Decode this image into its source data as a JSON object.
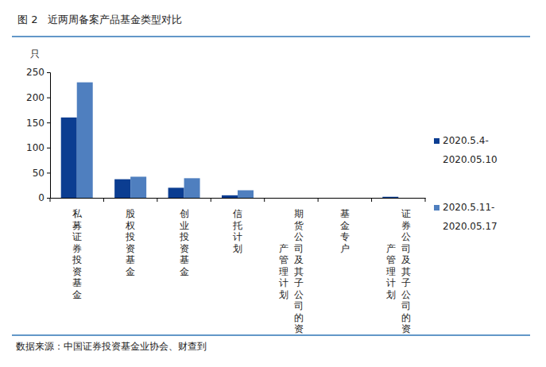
{
  "chart_data": {
    "type": "bar",
    "title": "图 2　近两周备案产品基金类型对比",
    "y_label": "只",
    "source": "数据来源：中国证券投资基金业协会、财查到",
    "categories": [
      "私募证券投资基金",
      "股权投资基金",
      "创业投资基金",
      "信托计划",
      "期货公司及其子公司的资产管理计划",
      "基金专户",
      "证券公司及其子公司的资产管理计划"
    ],
    "series": [
      {
        "name": "2020.5.4-2020.05.10",
        "color": "#0b3d91",
        "values": [
          160,
          37,
          20,
          5,
          0,
          0,
          2
        ]
      },
      {
        "name": "2020.5.11-2020.05.17",
        "color": "#4f7fbf",
        "values": [
          230,
          42,
          39,
          15,
          0,
          0,
          0
        ]
      }
    ],
    "ylim": [
      0,
      250
    ],
    "yticks": [
      0,
      50,
      100,
      150,
      200,
      250
    ],
    "grid": false,
    "legend": "right"
  }
}
